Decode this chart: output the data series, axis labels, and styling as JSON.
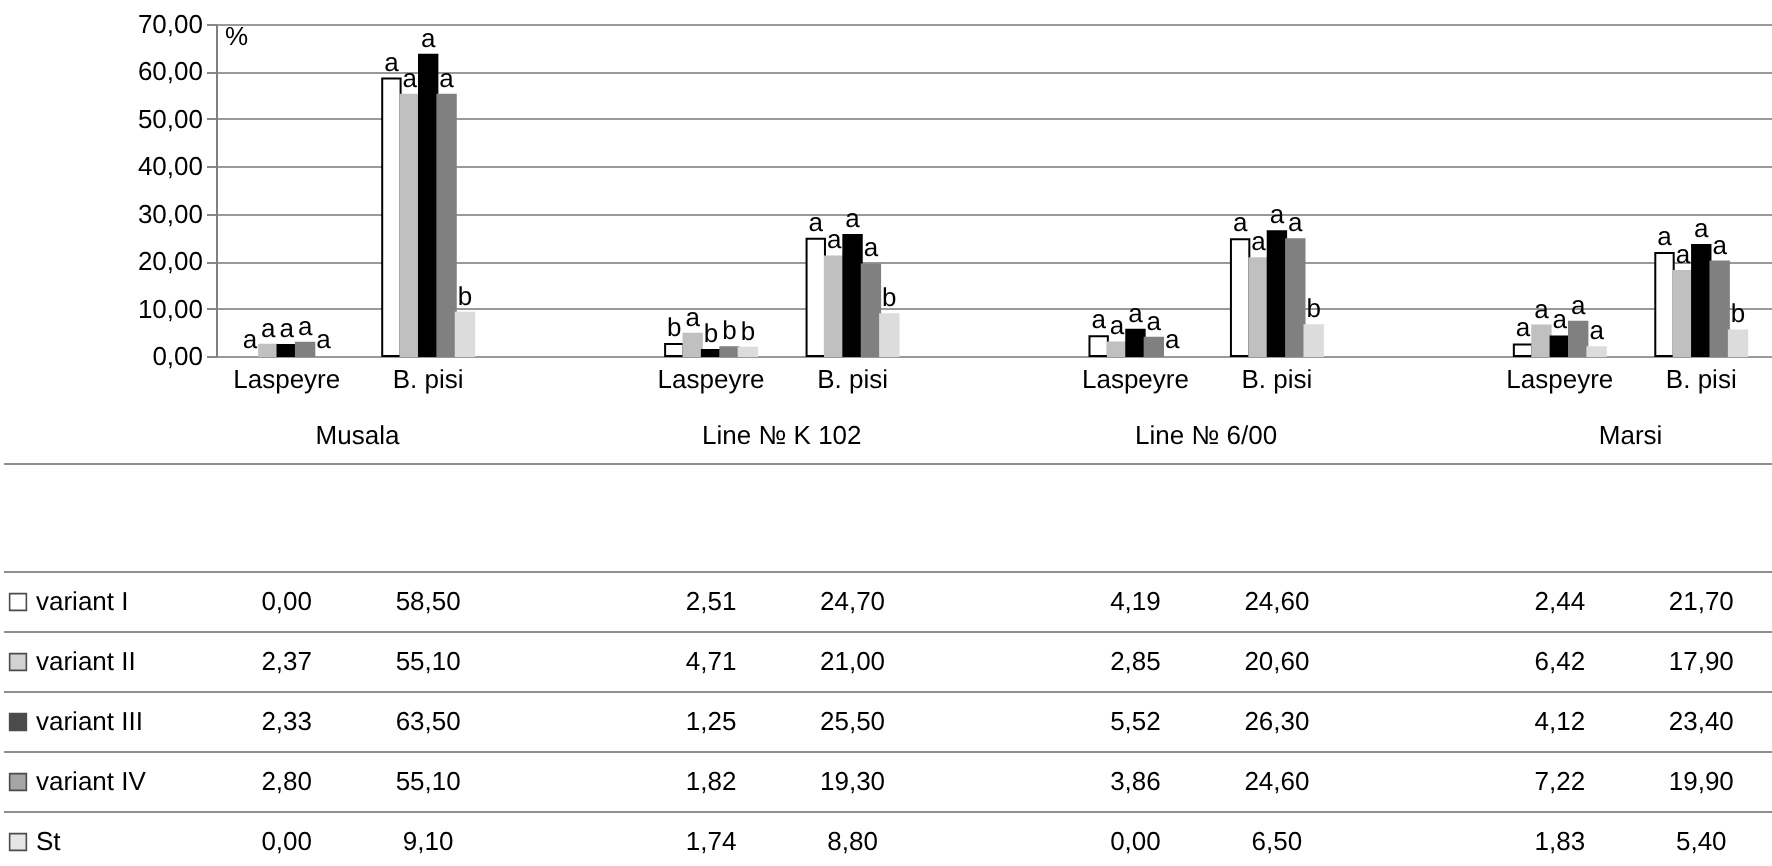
{
  "chart_data": {
    "type": "bar",
    "ylabel": "%",
    "categories": [
      "Laspeyre",
      "B. pisi",
      null,
      "Laspeyre",
      "B. pisi",
      null,
      "Laspeyre",
      "B. pisi",
      null,
      "Laspeyre",
      "B. pisi"
    ],
    "series": [
      {
        "name": "variant I",
        "color": "#ffffff",
        "values": [
          0.0,
          58.5,
          null,
          2.51,
          24.7,
          null,
          4.19,
          24.6,
          null,
          2.44,
          21.7
        ],
        "value_labels": [
          "0,00",
          "58,50",
          null,
          "2,51",
          "24,70",
          null,
          "4,19",
          "24,60",
          null,
          "2,44",
          "21,70"
        ]
      },
      {
        "name": "variant II",
        "color": "#c0c0c0",
        "values": [
          2.37,
          55.1,
          null,
          4.71,
          21.0,
          null,
          2.85,
          20.6,
          null,
          6.42,
          17.9
        ],
        "value_labels": [
          "2,37",
          "55,10",
          null,
          "4,71",
          "21,00",
          null,
          "2,85",
          "20,60",
          null,
          "6,42",
          "17,90"
        ]
      },
      {
        "name": "variant III",
        "color": "#000000",
        "values": [
          2.33,
          63.5,
          null,
          1.25,
          25.5,
          null,
          5.52,
          26.3,
          null,
          4.12,
          23.4
        ],
        "value_labels": [
          "2,33",
          "63,50",
          null,
          "1,25",
          "25,50",
          null,
          "5,52",
          "26,30",
          null,
          "4,12",
          "23,40"
        ]
      },
      {
        "name": "variant IV",
        "color": "#808080",
        "values": [
          2.8,
          55.1,
          null,
          1.82,
          19.3,
          null,
          3.86,
          24.6,
          null,
          7.22,
          19.9
        ],
        "value_labels": [
          "2,80",
          "55,10",
          null,
          "1,82",
          "19,30",
          null,
          "3,86",
          "24,60",
          null,
          "7,22",
          "19,90"
        ]
      },
      {
        "name": "St",
        "color": "#dcdcdc",
        "values": [
          0.0,
          9.1,
          null,
          1.74,
          8.8,
          null,
          0.0,
          6.5,
          null,
          1.83,
          5.4
        ],
        "value_labels": [
          "0,00",
          "9,10",
          null,
          "1,74",
          "8,80",
          null,
          "0,00",
          "6,50",
          null,
          "1,83",
          "5,40"
        ]
      }
    ],
    "annotations": [
      "Musala",
      "Line № K 102",
      "Line № 6/00",
      "Marsi",
      "a",
      "a",
      "a",
      "a",
      "a",
      "a",
      "a",
      "a",
      "a",
      "b",
      "b",
      "a",
      "b",
      "b",
      "b",
      "a",
      "a",
      "a",
      "a",
      "b",
      "a",
      "a",
      "a",
      "a",
      "a",
      "a",
      "a",
      "a",
      "a",
      "b",
      "a",
      "a",
      "a",
      "a",
      "a",
      "a",
      "a",
      "a",
      "a",
      "b"
    ],
    "ylim": [
      0,
      70
    ],
    "yticks": [
      {
        "value": 0,
        "label": "0,00"
      },
      {
        "value": 10,
        "label": "10,00"
      },
      {
        "value": 20,
        "label": "20,00"
      },
      {
        "value": 30,
        "label": "30,00"
      },
      {
        "value": 40,
        "label": "40,00"
      },
      {
        "value": 50,
        "label": "50,00"
      },
      {
        "value": 60,
        "label": "60,00"
      },
      {
        "value": 70,
        "label": "70,00"
      }
    ],
    "grid": "y",
    "legend": "bottom left"
  }
}
